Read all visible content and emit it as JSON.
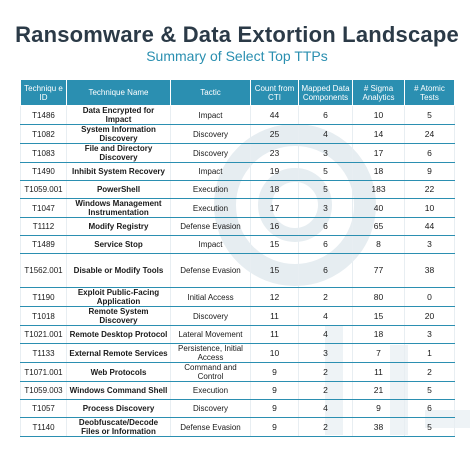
{
  "header": {
    "title": "Ransomware & Data Extortion Landscape",
    "subtitle": "Summary of Select Top TTPs"
  },
  "table": {
    "columns": [
      "Techniqu e ID",
      "Technique Name",
      "Tactic",
      "Count from CTI",
      "Mapped Data Components",
      "# Sigma Analytics",
      "# Atomic Tests"
    ],
    "rows": [
      [
        "T1486",
        "Data Encrypted for Impact",
        "Impact",
        "44",
        "6",
        "10",
        "5"
      ],
      [
        "T1082",
        "System Information Discovery",
        "Discovery",
        "25",
        "4",
        "14",
        "24"
      ],
      [
        "T1083",
        "File and Directory Discovery",
        "Discovery",
        "23",
        "3",
        "17",
        "6"
      ],
      [
        "T1490",
        "Inhibit System Recovery",
        "Impact",
        "19",
        "5",
        "18",
        "9"
      ],
      [
        "T1059.001",
        "PowerShell",
        "Execution",
        "18",
        "5",
        "183",
        "22"
      ],
      [
        "T1047",
        "Windows Management Instrumentation",
        "Execution",
        "17",
        "3",
        "40",
        "10"
      ],
      [
        "T1112",
        "Modify Registry",
        "Defense Evasion",
        "16",
        "6",
        "65",
        "44"
      ],
      [
        "T1489",
        "Service Stop",
        "Impact",
        "15",
        "6",
        "8",
        "3"
      ],
      [
        "T1562.001",
        "Disable or Modify Tools",
        "Defense Evasion",
        "15",
        "6",
        "77",
        "38"
      ],
      [
        "T1190",
        "Exploit Public-Facing Application",
        "Initial Access",
        "12",
        "2",
        "80",
        "0"
      ],
      [
        "T1018",
        "Remote System Discovery",
        "Discovery",
        "11",
        "4",
        "15",
        "20"
      ],
      [
        "T1021.001",
        "Remote Desktop Protocol",
        "Lateral Movement",
        "11",
        "4",
        "18",
        "3"
      ],
      [
        "T1133",
        "External Remote Services",
        "Persistence, Initial Access",
        "10",
        "3",
        "7",
        "1"
      ],
      [
        "T1071.001",
        "Web Protocols",
        "Command and Control",
        "9",
        "2",
        "11",
        "2"
      ],
      [
        "T1059.003",
        "Windows Command Shell",
        "Execution",
        "9",
        "2",
        "21",
        "5"
      ],
      [
        "T1057",
        "Process Discovery",
        "Discovery",
        "9",
        "4",
        "9",
        "6"
      ],
      [
        "T1140",
        "Deobfuscate/Decode Files or Information",
        "Defense Evasion",
        "9",
        "2",
        "38",
        "5"
      ]
    ]
  }
}
